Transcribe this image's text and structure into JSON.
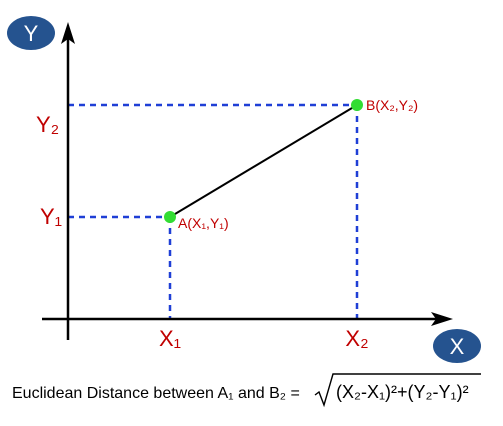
{
  "axes": {
    "x_axis_label": "X",
    "y_axis_label": "Y"
  },
  "ticks": {
    "x1": "X₁",
    "x2": "X₂",
    "y1": "Y₁",
    "y2": "Y₂"
  },
  "points": {
    "a_label": "A(X₁,Y₁)",
    "b_label": "B(X₂,Y₂)"
  },
  "formula": {
    "text": "Euclidean Distance between A₁ and B₂ =",
    "radicand": "(X₂-X₁)²+(Y₂-Y₁)²"
  },
  "colors": {
    "axis": "#000000",
    "dashed": "#1f3fd6",
    "point": "#33dd33",
    "label": "#c00000",
    "badge": "#25538f",
    "segment": "#000000"
  }
}
